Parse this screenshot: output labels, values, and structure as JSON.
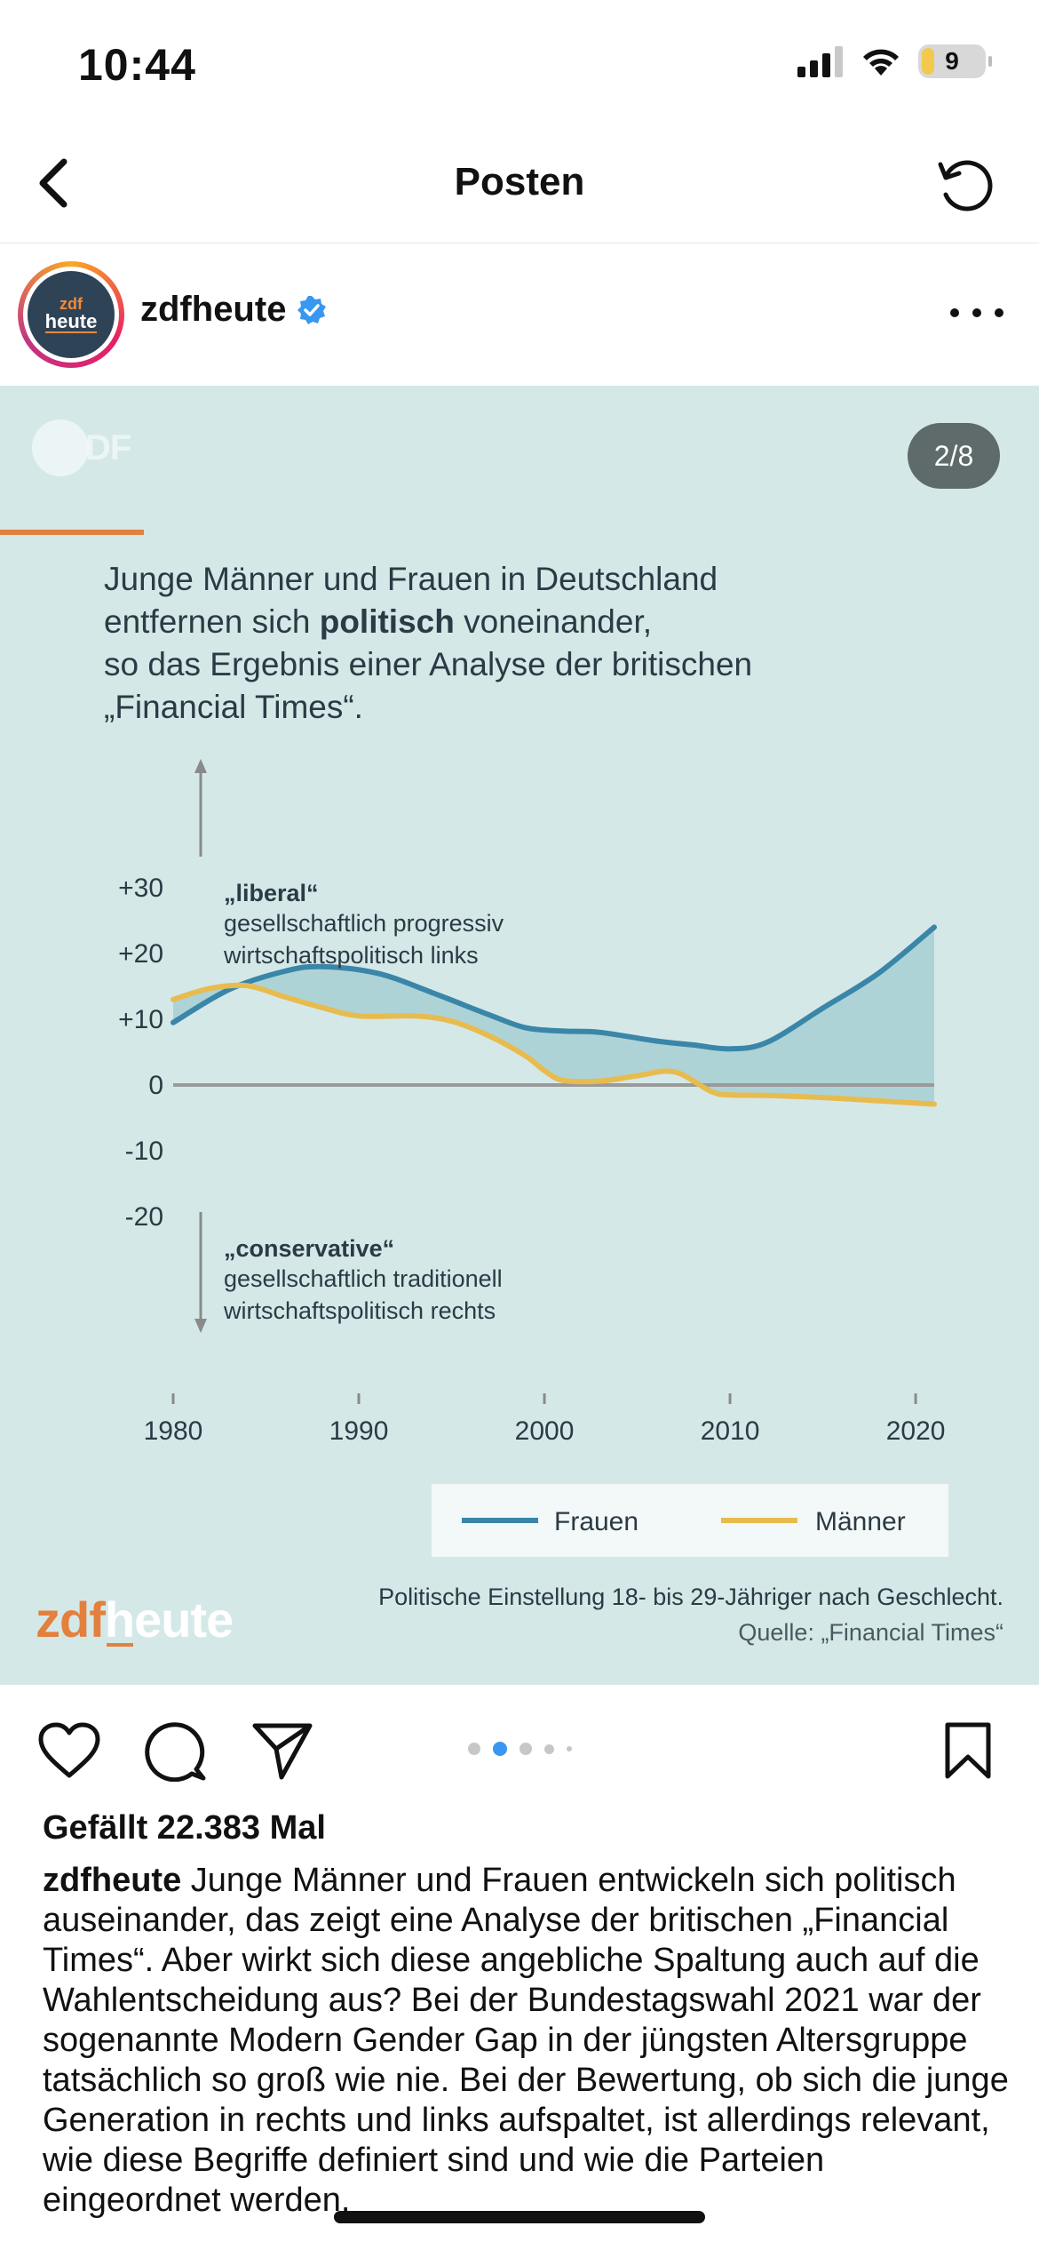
{
  "status_bar": {
    "time": "10:44",
    "battery": "9"
  },
  "nav": {
    "title": "Posten"
  },
  "post": {
    "username": "zdfheute",
    "avatar_top": "zdf",
    "avatar_bottom": "heute",
    "slide_counter": "2/8",
    "faded_logo": "DF",
    "intro_line1": "Junge Männer und Frauen in Deutschland",
    "intro_line2_pre": "entfernen sich ",
    "intro_line2_bold": "politisch",
    "intro_line2_post": " voneinander,",
    "intro_line3": "so das Ergebnis einer Analyse der britischen",
    "intro_line4": "„Financial Times“.",
    "footer_logo_zdf": "zdf",
    "footer_logo_heute": "heute",
    "source_line": "Politische Einstellung 18- bis 29-Jähriger nach Geschlecht.",
    "source_credit": "Quelle: „Financial Times“"
  },
  "chart_data": {
    "type": "line",
    "title": "",
    "xlabel": "",
    "ylabel": "",
    "xlim": [
      1980,
      2021
    ],
    "ylim": [
      -20,
      30
    ],
    "x_ticks": [
      "1980",
      "1990",
      "2000",
      "2010",
      "2020"
    ],
    "y_ticks": [
      "+30",
      "+20",
      "+10",
      "0",
      "-10",
      "-20"
    ],
    "annotation_liberal_title": "„liberal“",
    "annotation_liberal_line1": "gesellschaftlich progressiv",
    "annotation_liberal_line2": "wirtschaftspolitisch links",
    "annotation_conservative_title": "„conservative“",
    "annotation_conservative_line1": "gesellschaftlich traditionell",
    "annotation_conservative_line2": "wirtschaftspolitisch rechts",
    "legend_placement": "bottom-right",
    "fill_between": true,
    "series": [
      {
        "name": "Frauen",
        "color": "#3a86a8",
        "x": [
          1980,
          1983,
          1986,
          1988,
          1991,
          1994,
          1997,
          1999,
          2001,
          2003,
          2006,
          2008,
          2010,
          2012,
          2015,
          2018,
          2021
        ],
        "y": [
          9.5,
          14.5,
          17.3,
          18,
          17,
          14,
          10.7,
          8.7,
          8.2,
          8,
          6.7,
          6.1,
          5.5,
          6.5,
          11.7,
          17,
          24
        ]
      },
      {
        "name": "Männer",
        "color": "#e8bb4f",
        "x": [
          1980,
          1982,
          1984,
          1986,
          1988,
          1990,
          1993,
          1995,
          1997,
          1999,
          2000,
          2001,
          2003,
          2005,
          2007,
          2009,
          2010,
          2012,
          2015,
          2018,
          2021
        ],
        "y": [
          13,
          14.7,
          15.1,
          13.4,
          11.8,
          10.5,
          10.5,
          9.7,
          7.5,
          4.4,
          2.2,
          0.7,
          0.6,
          1.4,
          2,
          -1,
          -1.5,
          -1.6,
          -1.9,
          -2.4,
          -2.9
        ]
      }
    ]
  },
  "actions": {
    "likes": "Gefällt 22.383 Mal"
  },
  "caption": {
    "username": "zdfheute",
    "text": " Junge Männer und Frauen entwickeln sich politisch auseinander, das zeigt eine Analyse der britischen „Financial Times“. Aber wirkt sich diese angebliche Spaltung auch auf die Wahlentscheidung aus? Bei der Bundestagswahl 2021 war der sogenannte Modern Gender Gap in der jüngsten Altersgruppe tatsächlich so groß wie nie. Bei der Bewertung, ob sich die junge Generation in rechts und links aufspaltet, ist allerdings relevant, wie diese Begriffe definiert sind und wie die Parteien eingeordnet werden."
  }
}
